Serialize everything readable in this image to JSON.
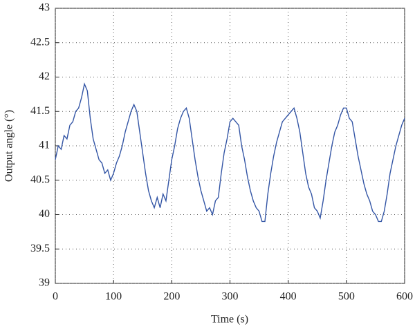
{
  "chart_data": {
    "type": "line",
    "xlabel": "Time (s)",
    "ylabel": "Output angle (°)",
    "x": [
      0,
      5,
      10,
      15,
      20,
      25,
      30,
      35,
      40,
      45,
      50,
      55,
      60,
      65,
      70,
      75,
      80,
      85,
      90,
      95,
      100,
      105,
      110,
      115,
      120,
      125,
      130,
      135,
      140,
      145,
      150,
      155,
      160,
      165,
      170,
      175,
      180,
      185,
      190,
      195,
      200,
      205,
      210,
      215,
      220,
      225,
      230,
      235,
      240,
      245,
      250,
      255,
      260,
      265,
      270,
      275,
      280,
      285,
      290,
      295,
      300,
      305,
      310,
      315,
      320,
      325,
      330,
      335,
      340,
      345,
      350,
      355,
      360,
      365,
      370,
      375,
      380,
      385,
      390,
      395,
      400,
      405,
      410,
      415,
      420,
      425,
      430,
      435,
      440,
      445,
      450,
      455,
      460,
      465,
      470,
      475,
      480,
      485,
      490,
      495,
      500,
      505,
      510,
      515,
      520,
      525,
      530,
      535,
      540,
      545,
      550,
      555,
      560,
      565,
      570,
      575,
      580,
      585,
      590,
      595,
      600
    ],
    "series": [
      {
        "name": "Output angle",
        "color": "#3355a5",
        "values": [
          40.8,
          41.0,
          40.95,
          41.15,
          41.1,
          41.3,
          41.35,
          41.5,
          41.55,
          41.7,
          41.9,
          41.8,
          41.4,
          41.1,
          40.95,
          40.8,
          40.75,
          40.6,
          40.65,
          40.5,
          40.6,
          40.75,
          40.85,
          41.0,
          41.2,
          41.35,
          41.5,
          41.6,
          41.5,
          41.2,
          40.9,
          40.6,
          40.35,
          40.2,
          40.1,
          40.25,
          40.1,
          40.3,
          40.2,
          40.5,
          40.8,
          41.0,
          41.25,
          41.4,
          41.5,
          41.55,
          41.4,
          41.1,
          40.8,
          40.55,
          40.35,
          40.2,
          40.05,
          40.1,
          40.0,
          40.2,
          40.25,
          40.6,
          40.9,
          41.1,
          41.35,
          41.4,
          41.35,
          41.3,
          41.0,
          40.8,
          40.55,
          40.35,
          40.2,
          40.1,
          40.05,
          39.9,
          39.9,
          40.3,
          40.6,
          40.85,
          41.05,
          41.2,
          41.35,
          41.4,
          41.45,
          41.5,
          41.55,
          41.4,
          41.2,
          40.9,
          40.6,
          40.4,
          40.3,
          40.1,
          40.05,
          39.95,
          40.2,
          40.5,
          40.75,
          41.0,
          41.2,
          41.3,
          41.45,
          41.55,
          41.55,
          41.4,
          41.35,
          41.1,
          40.85,
          40.65,
          40.45,
          40.3,
          40.2,
          40.05,
          40.0,
          39.9,
          39.9,
          40.05,
          40.3,
          40.6,
          40.8,
          41.0,
          41.15,
          41.3,
          41.4
        ]
      }
    ],
    "xlim": [
      0,
      600
    ],
    "xticks": [
      0,
      100,
      200,
      300,
      400,
      500,
      600
    ],
    "ylim": [
      39,
      43
    ],
    "yticks": [
      39,
      39.5,
      40,
      40.5,
      41,
      41.5,
      42,
      42.5,
      43
    ],
    "grid": true
  }
}
